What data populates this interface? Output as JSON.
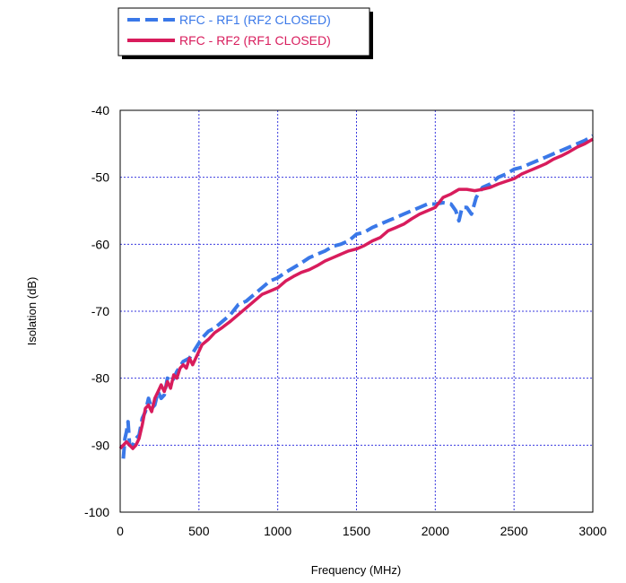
{
  "chart_data": {
    "type": "line",
    "xlabel": "Frequency (MHz)",
    "ylabel": "Isolation (dB)",
    "xlim": [
      0,
      3000
    ],
    "ylim": [
      -100,
      -40
    ],
    "xticks": [
      0,
      500,
      1000,
      1500,
      2000,
      2500,
      3000
    ],
    "yticks": [
      -40,
      -50,
      -60,
      -70,
      -80,
      -90,
      -100
    ],
    "grid": true,
    "legend_position": "top-left, outside plot",
    "series": [
      {
        "name": "RFC - RF1 (RF2 CLOSED)",
        "color": "#3a78e8",
        "style": "dashed",
        "points": [
          [
            20,
            -92
          ],
          [
            30,
            -89
          ],
          [
            40,
            -88
          ],
          [
            50,
            -86.5
          ],
          [
            60,
            -90
          ],
          [
            80,
            -90
          ],
          [
            100,
            -89
          ],
          [
            120,
            -88.5
          ],
          [
            140,
            -86
          ],
          [
            160,
            -85
          ],
          [
            180,
            -83
          ],
          [
            200,
            -84.5
          ],
          [
            220,
            -84
          ],
          [
            240,
            -82
          ],
          [
            260,
            -83
          ],
          [
            280,
            -82.5
          ],
          [
            300,
            -80
          ],
          [
            330,
            -80.5
          ],
          [
            360,
            -79
          ],
          [
            400,
            -77.5
          ],
          [
            440,
            -77
          ],
          [
            480,
            -75.5
          ],
          [
            520,
            -74
          ],
          [
            560,
            -73
          ],
          [
            600,
            -72.5
          ],
          [
            650,
            -71.5
          ],
          [
            700,
            -70.5
          ],
          [
            750,
            -69
          ],
          [
            800,
            -68.5
          ],
          [
            850,
            -67.5
          ],
          [
            900,
            -66.5
          ],
          [
            950,
            -65.5
          ],
          [
            1000,
            -65
          ],
          [
            1050,
            -64.2
          ],
          [
            1100,
            -63.5
          ],
          [
            1150,
            -62.8
          ],
          [
            1200,
            -62
          ],
          [
            1250,
            -61.5
          ],
          [
            1300,
            -61
          ],
          [
            1350,
            -60.3
          ],
          [
            1400,
            -60
          ],
          [
            1450,
            -59.5
          ],
          [
            1500,
            -58.5
          ],
          [
            1550,
            -58.2
          ],
          [
            1600,
            -57.5
          ],
          [
            1650,
            -57
          ],
          [
            1700,
            -56.5
          ],
          [
            1750,
            -56
          ],
          [
            1800,
            -55.5
          ],
          [
            1850,
            -55
          ],
          [
            1900,
            -54.5
          ],
          [
            1950,
            -54
          ],
          [
            2000,
            -54
          ],
          [
            2050,
            -53.8
          ],
          [
            2100,
            -54
          ],
          [
            2130,
            -55
          ],
          [
            2150,
            -56.5
          ],
          [
            2170,
            -54.5
          ],
          [
            2200,
            -54.5
          ],
          [
            2230,
            -55.5
          ],
          [
            2260,
            -53
          ],
          [
            2300,
            -51.5
          ],
          [
            2350,
            -51
          ],
          [
            2400,
            -50
          ],
          [
            2450,
            -49.5
          ],
          [
            2500,
            -48.8
          ],
          [
            2550,
            -48.5
          ],
          [
            2600,
            -48
          ],
          [
            2650,
            -47.5
          ],
          [
            2700,
            -47
          ],
          [
            2750,
            -46.5
          ],
          [
            2800,
            -46
          ],
          [
            2850,
            -45.5
          ],
          [
            2900,
            -45
          ],
          [
            2950,
            -44.5
          ],
          [
            3000,
            -43.8
          ]
        ]
      },
      {
        "name": "RFC - RF2 (RF1 CLOSED)",
        "color": "#d81c5c",
        "style": "solid",
        "points": [
          [
            0,
            -90.5
          ],
          [
            20,
            -90
          ],
          [
            40,
            -89.5
          ],
          [
            60,
            -90
          ],
          [
            80,
            -90.5
          ],
          [
            100,
            -90
          ],
          [
            120,
            -89
          ],
          [
            140,
            -87
          ],
          [
            160,
            -84.5
          ],
          [
            180,
            -84
          ],
          [
            200,
            -85
          ],
          [
            220,
            -83
          ],
          [
            240,
            -82
          ],
          [
            260,
            -81
          ],
          [
            280,
            -82
          ],
          [
            300,
            -80.5
          ],
          [
            320,
            -81.5
          ],
          [
            340,
            -79.5
          ],
          [
            360,
            -80
          ],
          [
            380,
            -78.5
          ],
          [
            400,
            -78
          ],
          [
            420,
            -78.5
          ],
          [
            440,
            -77
          ],
          [
            460,
            -78
          ],
          [
            480,
            -77
          ],
          [
            500,
            -76
          ],
          [
            520,
            -75
          ],
          [
            560,
            -74.2
          ],
          [
            600,
            -73.2
          ],
          [
            650,
            -72.4
          ],
          [
            700,
            -71.5
          ],
          [
            750,
            -70.5
          ],
          [
            800,
            -69.5
          ],
          [
            850,
            -68.5
          ],
          [
            900,
            -67.5
          ],
          [
            950,
            -67
          ],
          [
            1000,
            -66.5
          ],
          [
            1050,
            -65.5
          ],
          [
            1100,
            -64.8
          ],
          [
            1150,
            -64.2
          ],
          [
            1200,
            -63.8
          ],
          [
            1250,
            -63.2
          ],
          [
            1300,
            -62.5
          ],
          [
            1350,
            -62
          ],
          [
            1400,
            -61.5
          ],
          [
            1450,
            -61
          ],
          [
            1500,
            -60.7
          ],
          [
            1550,
            -60.2
          ],
          [
            1600,
            -59.5
          ],
          [
            1650,
            -59
          ],
          [
            1700,
            -58
          ],
          [
            1750,
            -57.5
          ],
          [
            1800,
            -57
          ],
          [
            1850,
            -56.2
          ],
          [
            1900,
            -55.5
          ],
          [
            1950,
            -55
          ],
          [
            2000,
            -54.5
          ],
          [
            2050,
            -53
          ],
          [
            2100,
            -52.5
          ],
          [
            2150,
            -51.8
          ],
          [
            2200,
            -51.8
          ],
          [
            2250,
            -52
          ],
          [
            2300,
            -51.8
          ],
          [
            2350,
            -51.5
          ],
          [
            2400,
            -51
          ],
          [
            2450,
            -50.6
          ],
          [
            2500,
            -50.2
          ],
          [
            2550,
            -49.5
          ],
          [
            2600,
            -49
          ],
          [
            2650,
            -48.5
          ],
          [
            2700,
            -48
          ],
          [
            2750,
            -47.3
          ],
          [
            2800,
            -46.8
          ],
          [
            2850,
            -46.2
          ],
          [
            2900,
            -45.5
          ],
          [
            2950,
            -45
          ],
          [
            3000,
            -44.3
          ]
        ]
      }
    ]
  }
}
